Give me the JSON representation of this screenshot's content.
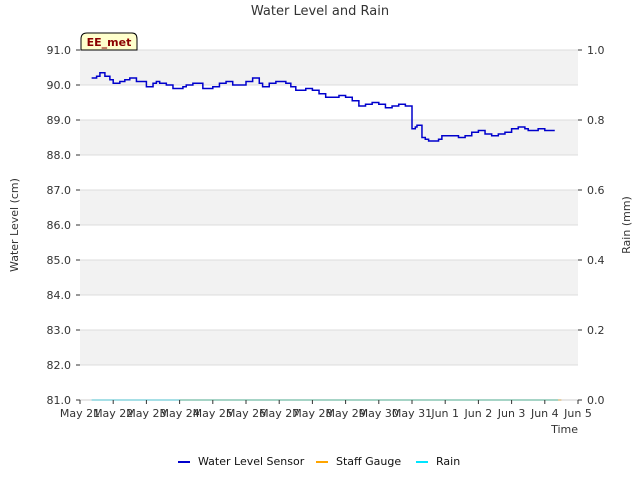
{
  "chart_data": {
    "type": "line",
    "title": "Water Level and Rain",
    "station_label": "EE_met",
    "xlabel": "Time",
    "ylabel_left": "Water Level (cm)",
    "ylabel_right": "Rain (mm)",
    "xlim": [
      0,
      15
    ],
    "ylim_left": [
      81.0,
      91.0
    ],
    "ylim_right": [
      0.0,
      1.0
    ],
    "y_ticks_left": [
      "81.0",
      "82.0",
      "83.0",
      "84.0",
      "85.0",
      "86.0",
      "87.0",
      "88.0",
      "89.0",
      "90.0",
      "91.0"
    ],
    "y_ticks_right": [
      "0.0",
      "0.2",
      "0.4",
      "0.6",
      "0.8",
      "1.0"
    ],
    "x_tick_labels": [
      "May 21",
      "May 22",
      "May 23",
      "May 24",
      "May 25",
      "May 26",
      "May 27",
      "May 28",
      "May 29",
      "May 30",
      "May 31",
      "Jun 1",
      "Jun 2",
      "Jun 3",
      "Jun 4",
      "Jun 5"
    ],
    "grid": true,
    "legend_position": "bottom",
    "series": [
      {
        "name": "Water Level Sensor",
        "color": "#0000cc",
        "axis": "left",
        "x": [
          0.35,
          0.5,
          0.6,
          0.75,
          0.9,
          1.0,
          1.2,
          1.35,
          1.5,
          1.7,
          2.0,
          2.2,
          2.3,
          2.4,
          2.6,
          2.8,
          3.0,
          3.1,
          3.2,
          3.4,
          3.5,
          3.7,
          3.9,
          4.0,
          4.2,
          4.4,
          4.6,
          4.8,
          5.0,
          5.2,
          5.4,
          5.5,
          5.7,
          5.9,
          6.0,
          6.2,
          6.35,
          6.5,
          6.6,
          6.8,
          7.0,
          7.2,
          7.4,
          7.6,
          7.8,
          7.9,
          8.0,
          8.2,
          8.4,
          8.6,
          8.8,
          9.0,
          9.2,
          9.4,
          9.6,
          9.8,
          10.0,
          10.1,
          10.15,
          10.25,
          10.3,
          10.4,
          10.5,
          10.8,
          10.9,
          11.1,
          11.4,
          11.6,
          11.8,
          12.0,
          12.2,
          12.4,
          12.6,
          12.8,
          13.0,
          13.2,
          13.4,
          13.5,
          13.6,
          13.7,
          13.8,
          14.0,
          14.1,
          14.2,
          14.3
        ],
        "values": [
          90.2,
          90.25,
          90.35,
          90.25,
          90.15,
          90.05,
          90.1,
          90.15,
          90.2,
          90.1,
          89.95,
          90.05,
          90.1,
          90.05,
          90.0,
          89.9,
          89.9,
          89.95,
          90.0,
          90.05,
          90.05,
          89.9,
          89.9,
          89.95,
          90.05,
          90.1,
          90.0,
          90.0,
          90.1,
          90.2,
          90.05,
          89.95,
          90.05,
          90.1,
          90.1,
          90.05,
          89.95,
          89.85,
          89.85,
          89.9,
          89.85,
          89.75,
          89.65,
          89.65,
          89.7,
          89.7,
          89.65,
          89.55,
          89.4,
          89.45,
          89.5,
          89.45,
          89.35,
          89.4,
          89.45,
          89.4,
          88.75,
          88.8,
          88.85,
          88.85,
          88.5,
          88.45,
          88.4,
          88.45,
          88.55,
          88.55,
          88.5,
          88.55,
          88.65,
          88.7,
          88.6,
          88.55,
          88.6,
          88.65,
          88.75,
          88.8,
          88.75,
          88.7,
          88.7,
          88.7,
          88.75,
          88.7,
          88.7,
          88.7,
          88.7
        ]
      },
      {
        "name": "Staff Gauge",
        "color": "#ffa500",
        "axis": "right",
        "x": [
          3.0,
          14.5
        ],
        "values": [
          0.0,
          0.0
        ]
      },
      {
        "name": "Rain",
        "color": "#00e5ff",
        "axis": "right",
        "x": [
          0.35,
          14.4
        ],
        "values": [
          0.0,
          0.0
        ]
      }
    ]
  }
}
